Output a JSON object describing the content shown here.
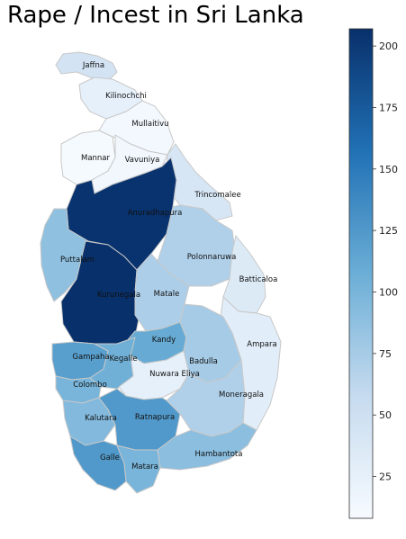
{
  "title": "Rape / Incest in Sri Lanka",
  "colorbar": {
    "min": 8,
    "max": 207,
    "ticks": [
      25,
      50,
      75,
      100,
      125,
      150,
      175,
      200
    ]
  },
  "districts": [
    {
      "name": "Jaffna",
      "value": 45
    },
    {
      "name": "Kilinochchi",
      "value": 25
    },
    {
      "name": "Mullaitivu",
      "value": 12
    },
    {
      "name": "Mannar",
      "value": 10
    },
    {
      "name": "Vavuniya",
      "value": 14
    },
    {
      "name": "Trincomalee",
      "value": 40
    },
    {
      "name": "Anuradhapura",
      "value": 205
    },
    {
      "name": "Puttalam",
      "value": 88
    },
    {
      "name": "Polonnaruwa",
      "value": 70
    },
    {
      "name": "Batticaloa",
      "value": 35
    },
    {
      "name": "Kurunegala",
      "value": 207
    },
    {
      "name": "Matale",
      "value": 72
    },
    {
      "name": "Kandy",
      "value": 110
    },
    {
      "name": "Ampara",
      "value": 30
    },
    {
      "name": "Gampaha",
      "value": 120
    },
    {
      "name": "Kegalle",
      "value": 105
    },
    {
      "name": "Badulla",
      "value": 75
    },
    {
      "name": "Colombo",
      "value": 100
    },
    {
      "name": "Nuwara Eliya",
      "value": 25
    },
    {
      "name": "Moneragala",
      "value": 70
    },
    {
      "name": "Kalutara",
      "value": 95
    },
    {
      "name": "Ratnapura",
      "value": 125
    },
    {
      "name": "Hambantota",
      "value": 90
    },
    {
      "name": "Galle",
      "value": 125
    },
    {
      "name": "Matara",
      "value": 100
    }
  ]
}
